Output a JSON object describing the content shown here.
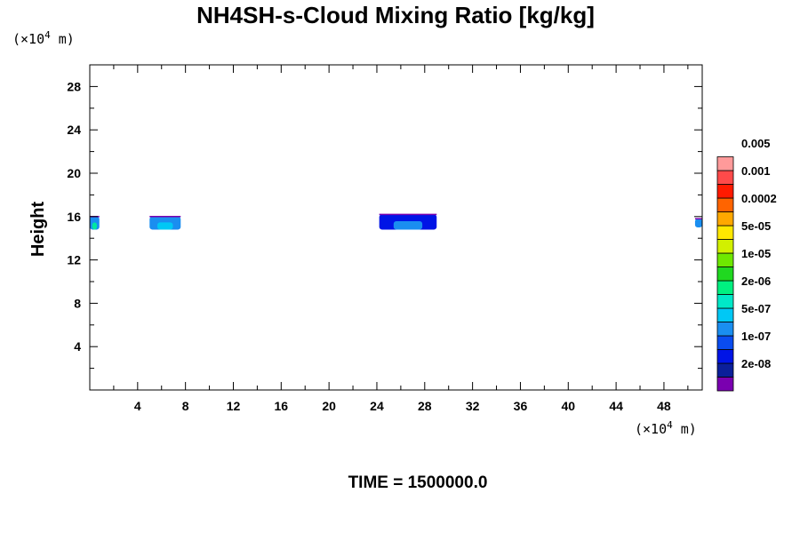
{
  "chart_data": {
    "type": "heatmap",
    "title": "NH4SH-s-Cloud Mixing Ratio [kg/kg]",
    "ylabel": "Height",
    "y_unit": {
      "base": "(×10",
      "exp": "4",
      "tail": " m)"
    },
    "x_unit": {
      "base": "(×10",
      "exp": "4",
      "tail": " m)"
    },
    "footer": "TIME = 1500000.0",
    "xlim": [
      0,
      51.2
    ],
    "ylim": [
      0,
      30
    ],
    "x_ticks": [
      4,
      8,
      12,
      16,
      20,
      24,
      28,
      32,
      36,
      40,
      44,
      48
    ],
    "y_ticks": [
      4,
      8,
      12,
      16,
      20,
      24,
      28
    ],
    "colorbar": {
      "colors": [
        "#7a00b0",
        "#0b1f9a",
        "#0014e6",
        "#0a4cf0",
        "#1a8ef0",
        "#00c8f5",
        "#00e8c8",
        "#00f080",
        "#20d820",
        "#6ee800",
        "#d2f000",
        "#ffe800",
        "#ffa800",
        "#ff6400",
        "#ff1a00",
        "#ff4a4a",
        "#ff9a9a"
      ],
      "labels": [
        "2e-08",
        "1e-07",
        "5e-07",
        "2e-06",
        "1e-05",
        "5e-05",
        "0.0002",
        "0.001",
        "0.005"
      ]
    },
    "features": [
      {
        "x": [
          0,
          0.8
        ],
        "y": [
          14.8,
          16.0
        ],
        "core": "#00e8a0",
        "top": "#1a8ef0"
      },
      {
        "x": [
          5.0,
          7.6
        ],
        "y": [
          14.8,
          16.0
        ],
        "core": "#00c8f5",
        "top": "#1a8ef0"
      },
      {
        "x": [
          24.2,
          29.0
        ],
        "y": [
          14.8,
          16.2
        ],
        "core": "#1a8ef0",
        "top": "#0014e6"
      },
      {
        "x": [
          50.6,
          51.2
        ],
        "y": [
          15.0,
          15.8
        ],
        "core": "#1a8ef0",
        "top": "#1a8ef0"
      }
    ]
  }
}
